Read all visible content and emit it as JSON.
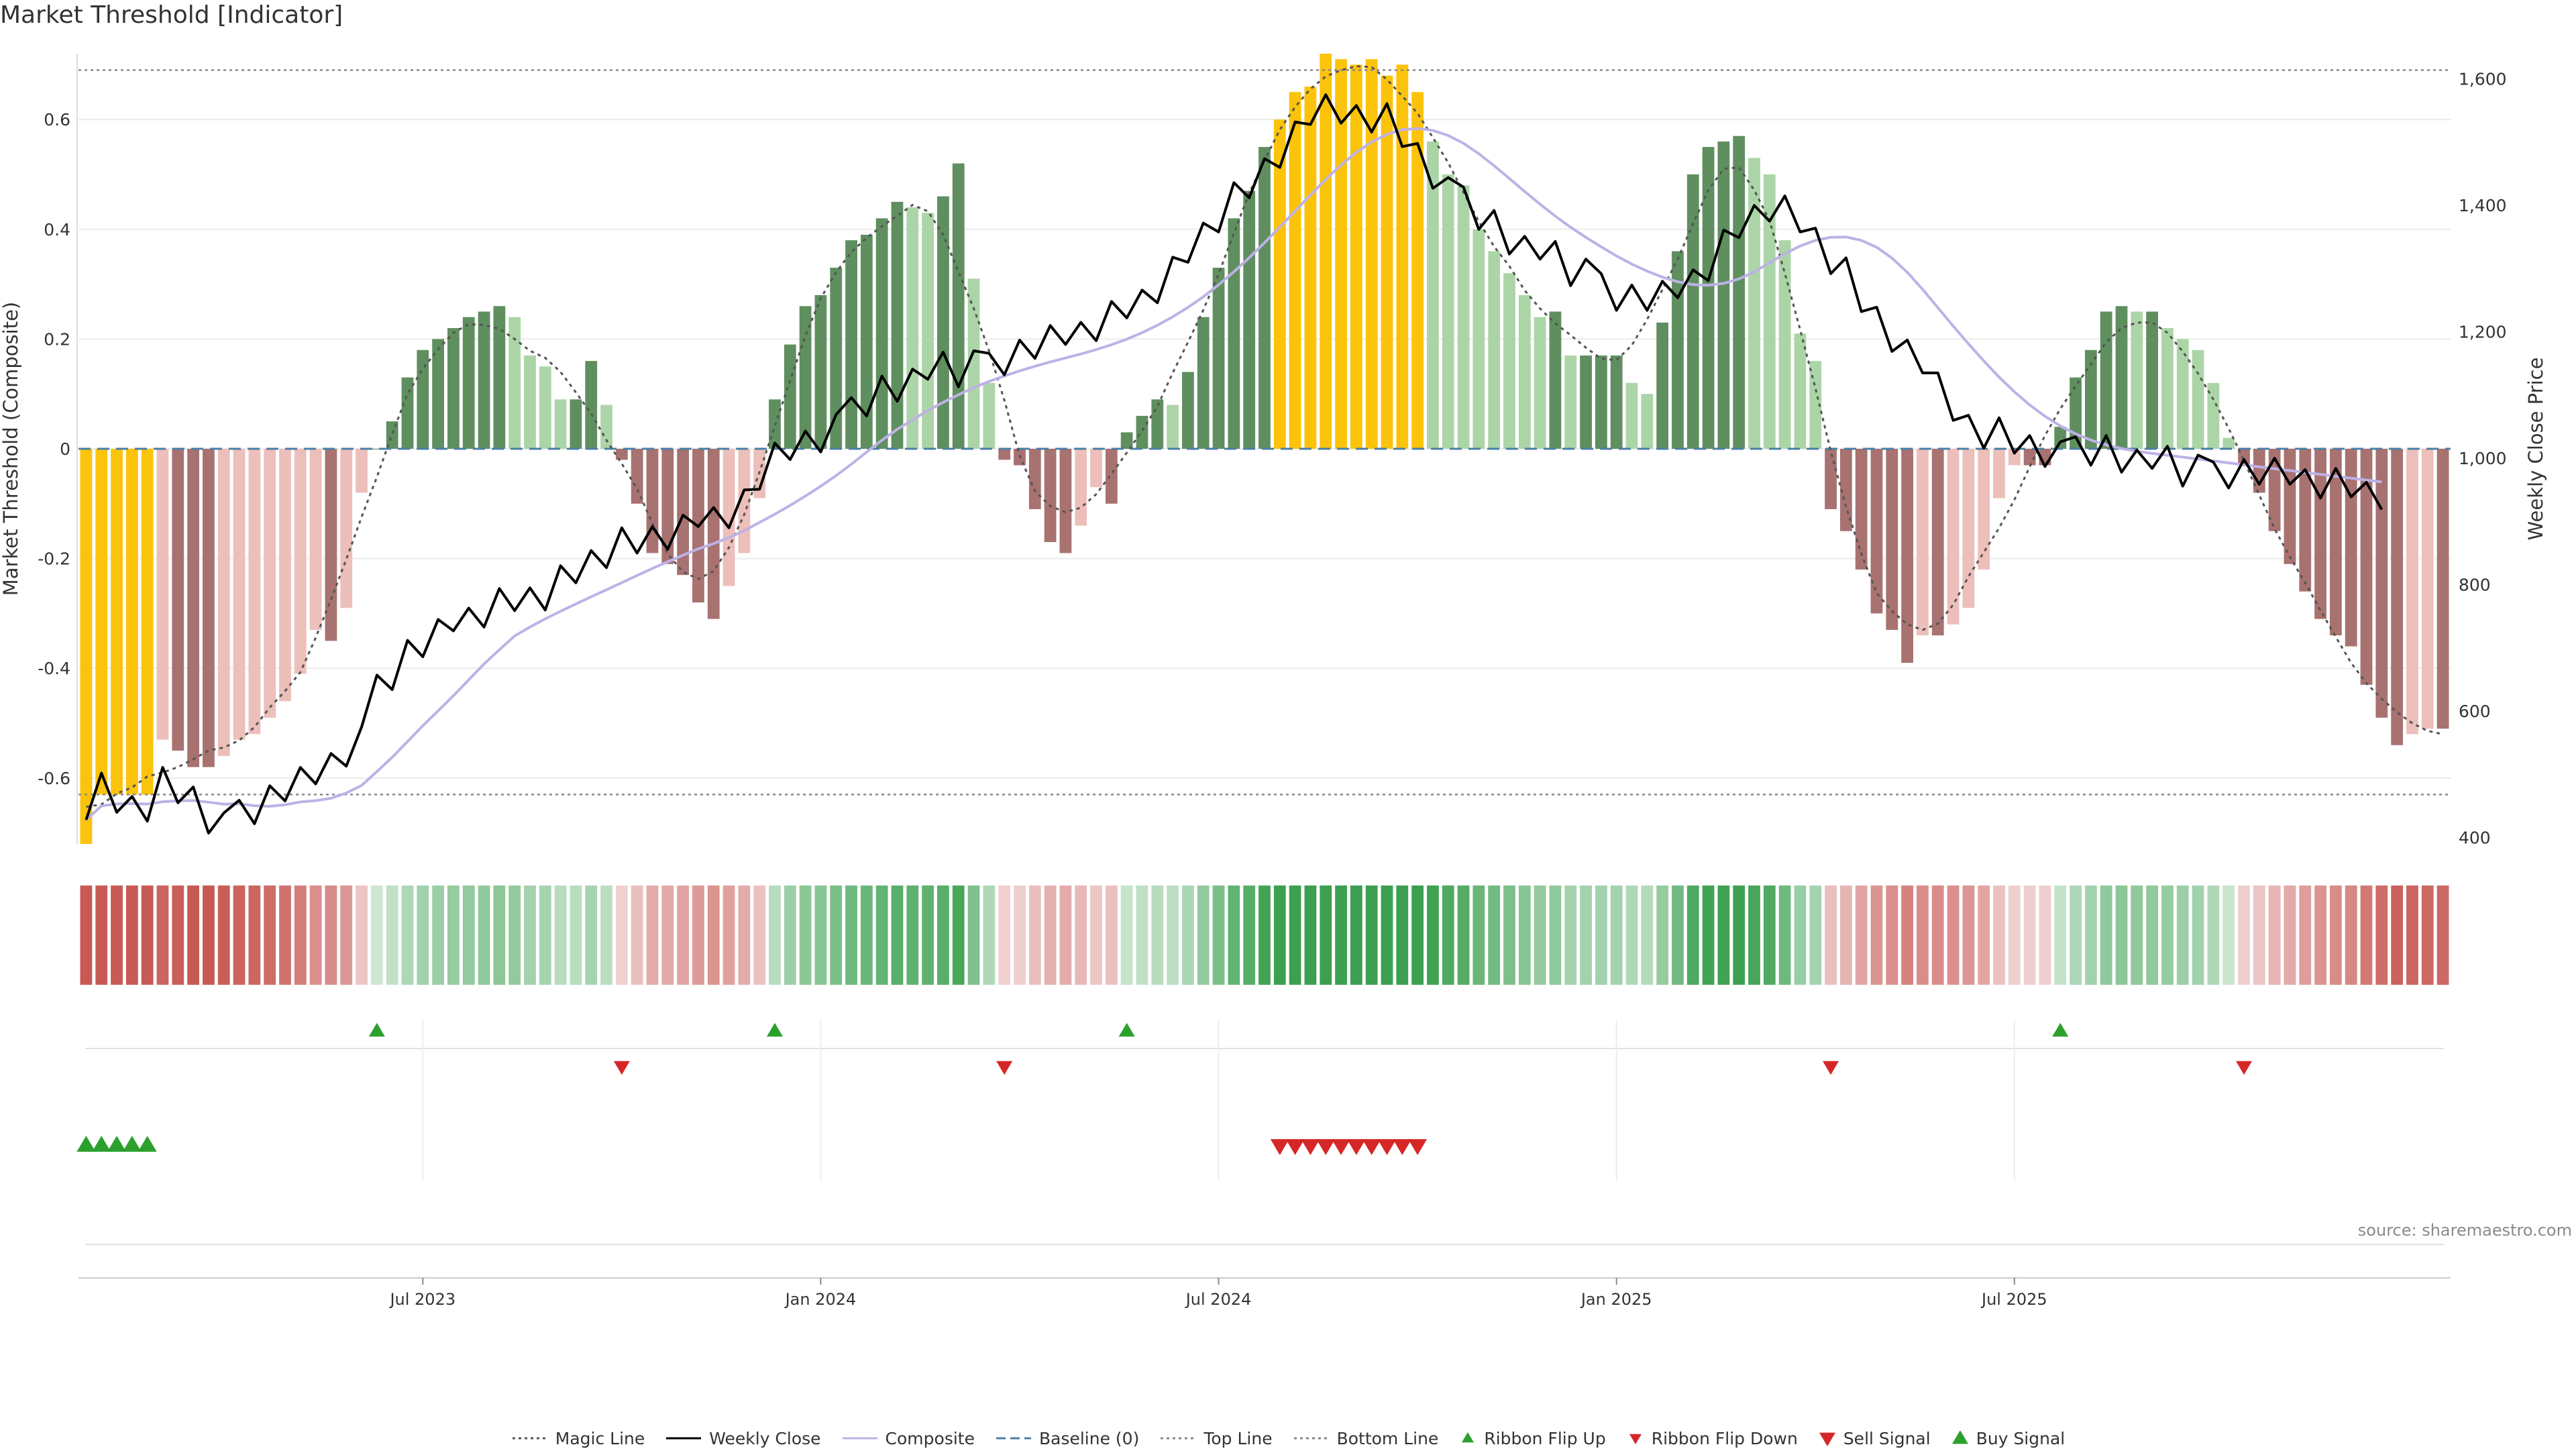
{
  "page": {
    "title": "Market Threshold [Indicator]",
    "source": "source: sharemaestro.com"
  },
  "legend": [
    {
      "label": "Magic Line",
      "kind": "line",
      "color": "#555555",
      "dash": "dotted"
    },
    {
      "label": "Weekly Close",
      "kind": "line",
      "color": "#000000",
      "dash": "solid"
    },
    {
      "label": "Composite",
      "kind": "line",
      "color": "#bdb2e6",
      "dash": "solid"
    },
    {
      "label": "Baseline (0)",
      "kind": "line",
      "color": "#4a7fa7",
      "dash": "dashed"
    },
    {
      "label": "Top Line",
      "kind": "line",
      "color": "#888888",
      "dash": "dotted"
    },
    {
      "label": "Bottom Line",
      "kind": "line",
      "color": "#888888",
      "dash": "dotted"
    },
    {
      "label": "Ribbon Flip Up",
      "kind": "marker",
      "color": "#2ca02c",
      "shape": "up"
    },
    {
      "label": "Ribbon Flip Down",
      "kind": "marker",
      "color": "#d62728",
      "shape": "down"
    },
    {
      "label": "Sell Signal",
      "kind": "marker",
      "color": "#d62728",
      "shape": "down-big"
    },
    {
      "label": "Buy Signal",
      "kind": "marker",
      "color": "#2ca02c",
      "shape": "up-big"
    }
  ],
  "chart_data": {
    "type": "bar",
    "title": "Market Threshold [Indicator]",
    "ylabel": "Market Threshold (Composite)",
    "y2label": "Weekly Close Price",
    "ylim": [
      -0.72,
      0.72
    ],
    "y2lim": [
      390,
      1640
    ],
    "yticks": [
      "-0.6",
      "-0.4",
      "-0.2",
      "0",
      "0.2",
      "0.4",
      "0.6"
    ],
    "y2ticks": [
      "400",
      "600",
      "800",
      "1,000",
      "1,200",
      "1,400",
      "1,600"
    ],
    "xticks": [
      "Jul 2023",
      "Jan 2024",
      "Jul 2024",
      "Jan 2025",
      "Jul 2025"
    ],
    "xtick_index": [
      22,
      48,
      74,
      100,
      126
    ],
    "top_line": 0.69,
    "bottom_line": -0.63,
    "colors": {
      "extreme": "#fcc30b",
      "pos_strong": "#5f8f5f",
      "pos_weak": "#acd5a7",
      "neg_strong": "#a87270",
      "neg_weak": "#edbfba",
      "close": "#000000",
      "composite": "#bdb2e6",
      "magic": "#555555",
      "baseline": "#4a7fa7"
    },
    "series": [
      {
        "name": "Market Threshold (Composite)",
        "values": [
          -0.72,
          -0.63,
          -0.63,
          -0.63,
          -0.63,
          -0.53,
          -0.55,
          -0.58,
          -0.58,
          -0.56,
          -0.53,
          -0.52,
          -0.49,
          -0.46,
          -0.41,
          -0.33,
          -0.35,
          -0.29,
          -0.08,
          0,
          0.05,
          0.13,
          0.18,
          0.2,
          0.22,
          0.24,
          0.25,
          0.26,
          0.24,
          0.17,
          0.15,
          0.09,
          0.09,
          0.16,
          0.08,
          -0.02,
          -0.1,
          -0.19,
          -0.21,
          -0.23,
          -0.28,
          -0.31,
          -0.25,
          -0.19,
          -0.09,
          0.09,
          0.19,
          0.26,
          0.28,
          0.33,
          0.38,
          0.39,
          0.42,
          0.45,
          0.44,
          0.43,
          0.46,
          0.52,
          0.31,
          0.12,
          -0.02,
          -0.03,
          -0.11,
          -0.17,
          -0.19,
          -0.14,
          -0.07,
          -0.1,
          0.03,
          0.06,
          0.09,
          0.08,
          0.14,
          0.24,
          0.33,
          0.42,
          0.47,
          0.55,
          0.6,
          0.65,
          0.66,
          0.72,
          0.71,
          0.7,
          0.71,
          0.68,
          0.7,
          0.65,
          0.56,
          0.5,
          0.48,
          0.4,
          0.36,
          0.32,
          0.28,
          0.24,
          0.25,
          0.17,
          0.17,
          0.17,
          0.17,
          0.12,
          0.1,
          0.23,
          0.36,
          0.5,
          0.55,
          0.56,
          0.57,
          0.53,
          0.5,
          0.38,
          0.21,
          0.16,
          -0.11,
          -0.15,
          -0.22,
          -0.3,
          -0.33,
          -0.39,
          -0.34,
          -0.34,
          -0.32,
          -0.29,
          -0.22,
          -0.09,
          -0.03,
          -0.03,
          -0.03,
          0.04,
          0.13,
          0.18,
          0.25,
          0.26,
          0.25,
          0.25,
          0.22,
          0.2,
          0.18,
          0.12,
          0.02,
          -0.03,
          -0.08,
          -0.15,
          -0.21,
          -0.26,
          -0.31,
          -0.34,
          -0.36,
          -0.43,
          -0.49,
          -0.54,
          -0.52,
          -0.51,
          -0.51
        ],
        "kind": "bars"
      },
      {
        "name": "Weekly Close",
        "values": [
          428,
          472,
          460,
          455,
          450,
          475,
          467,
          462,
          435,
          425,
          435,
          440,
          450,
          480,
          495,
          495,
          505,
          545,
          555,
          645,
          660,
          690,
          700,
          715,
          735,
          745,
          757,
          768,
          775,
          785,
          790,
          810,
          815,
          830,
          845,
          858,
          870,
          878,
          882,
          888,
          892,
          892,
          910,
          940,
          975,
          988,
          1010,
          1025,
          1038,
          1055,
          1072,
          1085,
          1098,
          1112,
          1125,
          1135,
          1140,
          1145,
          1150,
          1154,
          1158,
          1165,
          1172,
          1180,
          1188,
          1197,
          1210,
          1222,
          1238,
          1256,
          1276,
          1298,
          1322,
          1348,
          1376,
          1404,
          1432,
          1460,
          1486,
          1510,
          1528,
          1545,
          1550,
          1548,
          1540,
          1525,
          1505,
          1480,
          1455,
          1430,
          1405,
          1380,
          1360,
          1345,
          1335,
          1325,
          1315,
          1305,
          1295,
          1280,
          1260,
          1252,
          1248,
          1250,
          1262,
          1280,
          1305,
          1335,
          1365,
          1390,
          1405,
          1395,
          1370,
          1340,
          1310,
          1285,
          1252,
          1225,
          1195,
          1165,
          1135,
          1105,
          1080,
          1058,
          1040,
          1028,
          1020,
          1018,
          1015,
          1012,
          1010,
          1007,
          1004,
          1000,
          997,
          994,
          991,
          988,
          985,
          982,
          979,
          976,
          973,
          970,
          967,
          964,
          961,
          958,
          955,
          952,
          949
        ],
        "kind": "line-raw"
      }
    ]
  }
}
